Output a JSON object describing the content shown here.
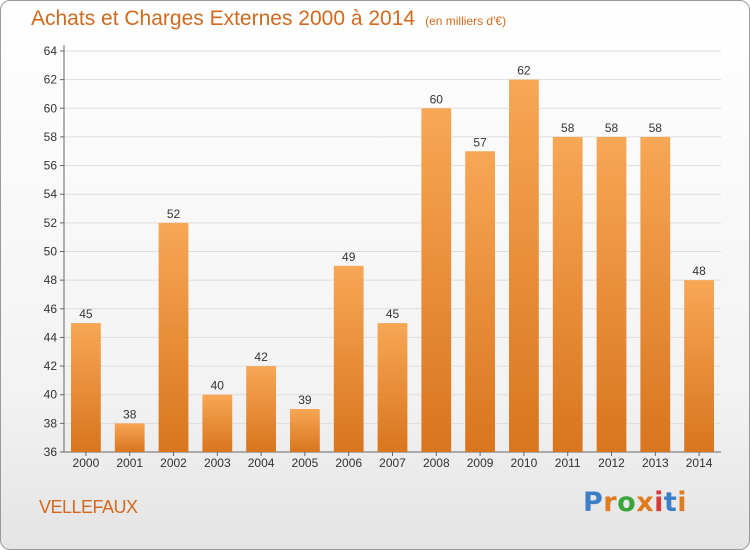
{
  "header": {
    "title": "Achats et Charges Externes 2000 à 2014",
    "subtitle": "(en milliers d'€)"
  },
  "footer": {
    "commune": "VELLEFAUX",
    "logo_text": "Proxiti"
  },
  "colors": {
    "title": "#d2691e",
    "bar_top": "#f7a755",
    "bar_bottom": "#d9751e",
    "logo": [
      "#3d7fc6",
      "#e07b1f",
      "#3aa63a",
      "#e07b1f",
      "#d93b3b",
      "#3d7fc6",
      "#e07b1f"
    ]
  },
  "chart_data": {
    "type": "bar",
    "categories": [
      "2000",
      "2001",
      "2002",
      "2003",
      "2004",
      "2005",
      "2006",
      "2007",
      "2008",
      "2009",
      "2010",
      "2011",
      "2012",
      "2013",
      "2014"
    ],
    "values": [
      45,
      38,
      52,
      40,
      42,
      39,
      49,
      45,
      60,
      57,
      62,
      58,
      58,
      58,
      48
    ],
    "data_labels": [
      "45",
      "38",
      "52",
      "40",
      "42",
      "39",
      "49",
      "45",
      "60",
      "57",
      "62",
      "58",
      "58",
      "58",
      "48"
    ],
    "title": "Achats et Charges Externes 2000 à 2014",
    "ylim": [
      36,
      64
    ],
    "yticks": [
      36,
      38,
      40,
      42,
      44,
      46,
      48,
      50,
      52,
      54,
      56,
      58,
      60,
      62,
      64
    ],
    "ytick_labels": [
      "36",
      "38",
      "40",
      "42",
      "44",
      "46",
      "48",
      "50",
      "52",
      "54",
      "56",
      "58",
      "60",
      "62",
      "64"
    ],
    "grid": true
  }
}
